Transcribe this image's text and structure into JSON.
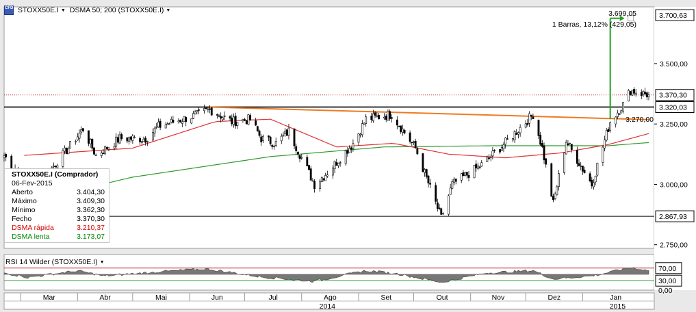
{
  "header": {
    "symbol": "STOXX50E.I",
    "indicator": "DSMA 50; 200 (STOXX50E.I)",
    "logo_text": "CFD"
  },
  "measure": {
    "price": "3.699,05",
    "summary": "1 Barras, 13,12% (429,05)"
  },
  "info_box": {
    "title": "STOXX50E.I (Comprador)",
    "date": "06-Fev-2015",
    "rows": [
      {
        "label": "Aberto",
        "value": "3.404,30"
      },
      {
        "label": "Máximo",
        "value": "3.409,30"
      },
      {
        "label": "Mínimo",
        "value": "3.362,30"
      },
      {
        "label": "Fecho",
        "value": "3.370,30"
      },
      {
        "label": "DSMA rápida",
        "value": "3.210,37"
      },
      {
        "label": "DSMA lenta",
        "value": "3.173,07"
      }
    ]
  },
  "rsi_header": "RSI 14 Wilder (STOXX50E.I)",
  "colors": {
    "bull": "#ffffff",
    "bear": "#000000",
    "fast_ma": "#e03030",
    "slow_ma": "#2e9a2e",
    "trendline": "#f07a1e",
    "arrow": "#22a022",
    "rsi_fill": "#777777"
  },
  "chart_data": [
    {
      "type": "candlestick",
      "title": "",
      "y_axis_ticks": [
        "3.500,00",
        "3.250,00",
        "3.000,00",
        "2.750,00"
      ],
      "ylim": [
        2735,
        3735
      ],
      "price_labels": [
        {
          "value": 3700.63,
          "label": "3.700,63"
        },
        {
          "value": 3370.3,
          "label": "3.370,30"
        },
        {
          "value": 3320.03,
          "label": "3.320,03"
        },
        {
          "value": 2867.93,
          "label": "2.867,93"
        }
      ],
      "horizontal_lines": [
        3320.03,
        2867.93
      ],
      "dotted_line": 3370.3,
      "annotation": {
        "value": 3270.0,
        "label": "3.270,00"
      },
      "trendline": {
        "start": [
          "2014-06-12",
          3320
        ],
        "end": [
          "2015-02-06",
          3268
        ]
      },
      "projection_arrow": {
        "date": "2015-01-16",
        "from": 3270,
        "to": 3699.05
      },
      "month_labels": [
        "Mar",
        "Abr",
        "Mai",
        "Jun",
        "Jul",
        "Ago",
        "Set",
        "Out",
        "Nov",
        "Dez",
        "Jan"
      ],
      "year_labels": [
        "2014",
        "2015"
      ],
      "start_date": "2014-02-20",
      "end_date": "2015-02-06",
      "series": [
        {
          "name": "STOXX50E.I",
          "close_keypoints": [
            [
              "2014-02-20",
              3120
            ],
            [
              "2014-03-04",
              3010
            ],
            [
              "2014-03-14",
              3030
            ],
            [
              "2014-03-28",
              3160
            ],
            [
              "2014-04-04",
              3230
            ],
            [
              "2014-04-11",
              3120
            ],
            [
              "2014-04-24",
              3190
            ],
            [
              "2014-05-08",
              3190
            ],
            [
              "2014-05-15",
              3240
            ],
            [
              "2014-06-06",
              3290
            ],
            [
              "2014-06-12",
              3310
            ],
            [
              "2014-06-24",
              3260
            ],
            [
              "2014-07-04",
              3270
            ],
            [
              "2014-07-10",
              3190
            ],
            [
              "2014-07-18",
              3170
            ],
            [
              "2014-07-25",
              3220
            ],
            [
              "2014-08-08",
              3000
            ],
            [
              "2014-08-15",
              3050
            ],
            [
              "2014-08-29",
              3170
            ],
            [
              "2014-09-05",
              3270
            ],
            [
              "2014-09-19",
              3290
            ],
            [
              "2014-10-02",
              3150
            ],
            [
              "2014-10-16",
              2860
            ],
            [
              "2014-10-22",
              3000
            ],
            [
              "2014-11-07",
              3080
            ],
            [
              "2014-11-21",
              3180
            ],
            [
              "2014-12-05",
              3290
            ],
            [
              "2014-12-10",
              3150
            ],
            [
              "2014-12-16",
              2920
            ],
            [
              "2014-12-23",
              3180
            ],
            [
              "2015-01-06",
              3000
            ],
            [
              "2015-01-16",
              3260
            ],
            [
              "2015-01-23",
              3330
            ],
            [
              "2015-01-27",
              3390
            ],
            [
              "2015-02-06",
              3370.3
            ]
          ]
        }
      ],
      "fast_ma_keypoints": [
        [
          "2014-03-03",
          3120
        ],
        [
          "2014-05-01",
          3150
        ],
        [
          "2014-06-15",
          3260
        ],
        [
          "2014-07-15",
          3270
        ],
        [
          "2014-08-20",
          3155
        ],
        [
          "2014-09-20",
          3170
        ],
        [
          "2014-10-20",
          3125
        ],
        [
          "2014-11-20",
          3110
        ],
        [
          "2014-12-20",
          3130
        ],
        [
          "2015-01-15",
          3165
        ],
        [
          "2015-02-06",
          3210.37
        ]
      ],
      "slow_ma_keypoints": [
        [
          "2014-02-20",
          2905
        ],
        [
          "2014-05-01",
          3030
        ],
        [
          "2014-07-15",
          3115
        ],
        [
          "2014-09-15",
          3155
        ],
        [
          "2014-11-15",
          3160
        ],
        [
          "2015-01-15",
          3160
        ],
        [
          "2015-02-06",
          3173.07
        ]
      ]
    },
    {
      "type": "area",
      "title": "RSI 14 Wilder (STOXX50E.I)",
      "y_axis_ticks": [
        "70,00",
        "30,00",
        "0,00"
      ],
      "ylim": [
        0,
        100
      ],
      "levels": [
        70,
        30
      ],
      "start_date": "2014-02-20",
      "end_date": "2015-02-06",
      "rsi_keypoints": [
        [
          "2014-02-20",
          55
        ],
        [
          "2014-03-05",
          40
        ],
        [
          "2014-04-01",
          62
        ],
        [
          "2014-04-15",
          45
        ],
        [
          "2014-05-15",
          58
        ],
        [
          "2014-06-10",
          68
        ],
        [
          "2014-07-10",
          42
        ],
        [
          "2014-08-08",
          28
        ],
        [
          "2014-09-05",
          62
        ],
        [
          "2014-09-22",
          52
        ],
        [
          "2014-10-16",
          25
        ],
        [
          "2014-11-10",
          55
        ],
        [
          "2014-12-05",
          62
        ],
        [
          "2014-12-16",
          35
        ],
        [
          "2015-01-06",
          45
        ],
        [
          "2015-01-28",
          72
        ],
        [
          "2015-02-06",
          62
        ]
      ]
    }
  ]
}
